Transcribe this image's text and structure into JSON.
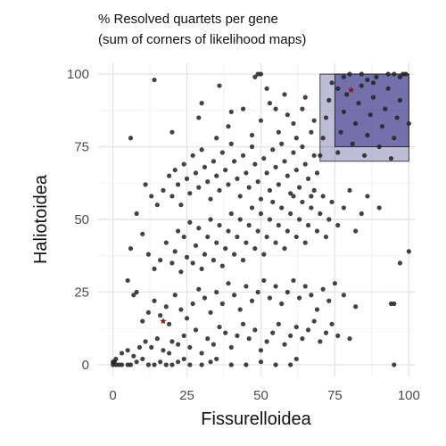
{
  "chart_data": {
    "type": "scatter",
    "title_lines": [
      "% Resolved quartets per gene",
      "(sum of corners of likelihood maps)"
    ],
    "xlabel": "Fissurelloidea",
    "ylabel": "Haliotoidea",
    "xlim": [
      -5,
      102
    ],
    "ylim": [
      -4,
      104
    ],
    "x_ticks": [
      0,
      25,
      50,
      75,
      100
    ],
    "y_ticks": [
      0,
      25,
      50,
      75,
      100
    ],
    "grid": true,
    "colors": {
      "points": "#222222",
      "highlight": "#8b1a1a",
      "region_fill": "#27247f",
      "region_inner_fill": "#27247f",
      "grid_major": "#e6e6e6",
      "grid_minor": "#f2f2f2"
    },
    "regions": [
      {
        "x0": 70,
        "x1": 100,
        "y0": 70,
        "y1": 100,
        "opacity": 0.3
      },
      {
        "x0": 75,
        "x1": 100,
        "y0": 75,
        "y1": 100,
        "opacity": 0.5
      }
    ],
    "highlighted_points": [
      {
        "x": 80.5,
        "y": 94.5
      },
      {
        "x": 17.0,
        "y": 15.0
      }
    ],
    "points": [
      [
        0,
        0
      ],
      [
        0.5,
        1
      ],
      [
        1,
        2
      ],
      [
        0,
        1
      ],
      [
        1,
        0
      ],
      [
        2,
        0
      ],
      [
        3,
        0
      ],
      [
        5,
        0
      ],
      [
        6,
        0
      ],
      [
        8,
        1
      ],
      [
        10,
        2
      ],
      [
        12,
        0
      ],
      [
        14,
        0
      ],
      [
        16,
        1
      ],
      [
        18,
        0
      ],
      [
        20,
        0
      ],
      [
        22,
        1
      ],
      [
        24,
        2
      ],
      [
        26,
        0
      ],
      [
        30,
        0
      ],
      [
        33,
        1
      ],
      [
        35,
        2
      ],
      [
        40,
        0
      ],
      [
        45,
        0
      ],
      [
        50,
        1
      ],
      [
        55,
        0
      ],
      [
        60,
        0
      ],
      [
        62,
        2
      ],
      [
        95,
        0
      ],
      [
        3,
        4
      ],
      [
        5,
        5
      ],
      [
        7,
        3
      ],
      [
        9,
        6
      ],
      [
        11,
        8
      ],
      [
        13,
        6
      ],
      [
        15,
        9
      ],
      [
        17,
        5
      ],
      [
        19,
        4
      ],
      [
        20,
        8
      ],
      [
        22,
        7
      ],
      [
        24,
        10
      ],
      [
        26,
        6
      ],
      [
        28,
        12
      ],
      [
        30,
        4
      ],
      [
        32,
        9
      ],
      [
        34,
        7
      ],
      [
        36,
        13
      ],
      [
        38,
        11
      ],
      [
        40,
        6
      ],
      [
        42,
        10
      ],
      [
        44,
        14
      ],
      [
        46,
        9
      ],
      [
        48,
        12
      ],
      [
        50,
        5
      ],
      [
        52,
        8
      ],
      [
        54,
        11
      ],
      [
        56,
        14
      ],
      [
        58,
        7
      ],
      [
        60,
        10
      ],
      [
        62,
        13
      ],
      [
        64,
        9
      ],
      [
        66,
        12
      ],
      [
        68,
        15
      ],
      [
        70,
        8
      ],
      [
        72,
        11
      ],
      [
        74,
        14
      ],
      [
        76,
        10
      ],
      [
        80,
        9
      ],
      [
        7,
        24
      ],
      [
        8,
        25
      ],
      [
        5,
        29
      ],
      [
        10,
        15
      ],
      [
        12,
        18
      ],
      [
        14,
        22
      ],
      [
        16,
        17
      ],
      [
        18,
        20
      ],
      [
        19,
        14
      ],
      [
        21,
        24
      ],
      [
        23,
        19
      ],
      [
        25,
        16
      ],
      [
        27,
        21
      ],
      [
        29,
        26
      ],
      [
        31,
        23
      ],
      [
        33,
        18
      ],
      [
        35,
        25
      ],
      [
        37,
        21
      ],
      [
        39,
        28
      ],
      [
        41,
        24
      ],
      [
        43,
        19
      ],
      [
        45,
        27
      ],
      [
        47,
        22
      ],
      [
        49,
        25
      ],
      [
        51,
        29
      ],
      [
        53,
        23
      ],
      [
        55,
        27
      ],
      [
        57,
        21
      ],
      [
        59,
        25
      ],
      [
        61,
        29
      ],
      [
        63,
        23
      ],
      [
        65,
        27
      ],
      [
        67,
        24
      ],
      [
        69,
        19
      ],
      [
        71,
        26
      ],
      [
        73,
        22
      ],
      [
        75,
        28
      ],
      [
        78,
        24
      ],
      [
        82,
        20
      ],
      [
        94,
        21
      ],
      [
        95,
        21
      ],
      [
        6,
        40
      ],
      [
        8,
        52
      ],
      [
        10,
        45
      ],
      [
        12,
        38
      ],
      [
        14,
        33
      ],
      [
        16,
        36
      ],
      [
        18,
        42
      ],
      [
        20,
        35
      ],
      [
        21,
        39
      ],
      [
        22,
        46
      ],
      [
        23,
        32
      ],
      [
        24,
        44
      ],
      [
        25,
        37
      ],
      [
        26,
        49
      ],
      [
        27,
        35
      ],
      [
        28,
        41
      ],
      [
        29,
        47
      ],
      [
        30,
        33
      ],
      [
        31,
        38
      ],
      [
        32,
        44
      ],
      [
        33,
        50
      ],
      [
        34,
        36
      ],
      [
        35,
        42
      ],
      [
        36,
        48
      ],
      [
        37,
        34
      ],
      [
        38,
        40
      ],
      [
        39,
        46
      ],
      [
        40,
        52
      ],
      [
        41,
        38
      ],
      [
        42,
        44
      ],
      [
        43,
        50
      ],
      [
        44,
        36
      ],
      [
        45,
        42
      ],
      [
        46,
        48
      ],
      [
        47,
        54
      ],
      [
        48,
        40
      ],
      [
        49,
        46
      ],
      [
        50,
        52
      ],
      [
        51,
        38
      ],
      [
        52,
        44
      ],
      [
        53,
        50
      ],
      [
        54,
        56
      ],
      [
        55,
        42
      ],
      [
        56,
        48
      ],
      [
        57,
        54
      ],
      [
        58,
        40
      ],
      [
        59,
        46
      ],
      [
        60,
        52
      ],
      [
        61,
        58
      ],
      [
        62,
        44
      ],
      [
        63,
        50
      ],
      [
        64,
        56
      ],
      [
        65,
        42
      ],
      [
        66,
        48
      ],
      [
        67,
        54
      ],
      [
        68,
        60
      ],
      [
        69,
        46
      ],
      [
        70,
        52
      ],
      [
        71,
        58
      ],
      [
        72,
        44
      ],
      [
        73,
        50
      ],
      [
        74,
        56
      ],
      [
        76,
        48
      ],
      [
        78,
        54
      ],
      [
        80,
        60
      ],
      [
        82,
        46
      ],
      [
        84,
        52
      ],
      [
        86,
        58
      ],
      [
        90,
        54
      ],
      [
        97,
        35
      ],
      [
        100,
        39
      ],
      [
        11,
        62
      ],
      [
        13,
        58
      ],
      [
        15,
        55
      ],
      [
        17,
        60
      ],
      [
        19,
        65
      ],
      [
        20,
        58
      ],
      [
        21,
        67
      ],
      [
        22,
        62
      ],
      [
        23,
        55
      ],
      [
        24,
        69
      ],
      [
        25,
        64
      ],
      [
        26,
        59
      ],
      [
        27,
        72
      ],
      [
        28,
        66
      ],
      [
        29,
        61
      ],
      [
        30,
        74
      ],
      [
        31,
        68
      ],
      [
        32,
        63
      ],
      [
        33,
        57
      ],
      [
        34,
        70
      ],
      [
        35,
        65
      ],
      [
        36,
        60
      ],
      [
        37,
        73
      ],
      [
        38,
        67
      ],
      [
        39,
        62
      ],
      [
        40,
        76
      ],
      [
        41,
        70
      ],
      [
        42,
        64
      ],
      [
        43,
        58
      ],
      [
        44,
        72
      ],
      [
        45,
        66
      ],
      [
        46,
        61
      ],
      [
        47,
        75
      ],
      [
        48,
        69
      ],
      [
        49,
        63
      ],
      [
        50,
        57
      ],
      [
        51,
        71
      ],
      [
        52,
        66
      ],
      [
        53,
        60
      ],
      [
        54,
        74
      ],
      [
        55,
        68
      ],
      [
        56,
        62
      ],
      [
        57,
        76
      ],
      [
        58,
        70
      ],
      [
        59,
        65
      ],
      [
        60,
        59
      ],
      [
        61,
        73
      ],
      [
        62,
        67
      ],
      [
        63,
        61
      ],
      [
        64,
        75
      ],
      [
        65,
        69
      ],
      [
        66,
        64
      ],
      [
        67,
        58
      ],
      [
        68,
        72
      ],
      [
        69,
        66
      ],
      [
        6,
        78
      ],
      [
        20,
        80
      ],
      [
        29,
        85
      ],
      [
        35,
        78
      ],
      [
        39,
        82
      ],
      [
        44,
        88
      ],
      [
        47,
        79
      ],
      [
        50,
        84
      ],
      [
        53,
        90
      ],
      [
        56,
        80
      ],
      [
        59,
        86
      ],
      [
        62,
        78
      ],
      [
        65,
        92
      ],
      [
        68,
        84
      ],
      [
        14,
        98
      ],
      [
        48,
        99
      ],
      [
        49,
        100
      ],
      [
        50,
        100
      ],
      [
        30,
        90
      ],
      [
        36,
        96
      ],
      [
        40,
        87
      ],
      [
        52,
        95
      ],
      [
        55,
        88
      ],
      [
        58,
        93
      ],
      [
        61,
        83
      ],
      [
        64,
        88
      ],
      [
        67,
        80
      ],
      [
        70,
        72
      ],
      [
        71,
        78
      ],
      [
        72,
        85
      ],
      [
        73,
        91
      ],
      [
        74,
        97
      ],
      [
        76,
        73
      ],
      [
        77,
        80
      ],
      [
        78,
        87
      ],
      [
        79,
        93
      ],
      [
        81,
        76
      ],
      [
        82,
        83
      ],
      [
        83,
        90
      ],
      [
        84,
        96
      ],
      [
        85,
        72
      ],
      [
        86,
        79
      ],
      [
        87,
        86
      ],
      [
        88,
        92
      ],
      [
        89,
        99
      ],
      [
        90,
        75
      ],
      [
        91,
        82
      ],
      [
        92,
        88
      ],
      [
        93,
        95
      ],
      [
        94,
        71
      ],
      [
        95,
        78
      ],
      [
        96,
        85
      ],
      [
        97,
        91
      ],
      [
        98,
        100
      ],
      [
        99,
        100
      ],
      [
        100,
        83
      ],
      [
        93,
        100
      ],
      [
        95,
        100
      ],
      [
        97,
        99
      ],
      [
        76,
        95
      ],
      [
        78,
        99
      ],
      [
        80,
        100
      ],
      [
        84,
        100
      ],
      [
        86,
        98
      ],
      [
        88,
        97
      ]
    ]
  }
}
